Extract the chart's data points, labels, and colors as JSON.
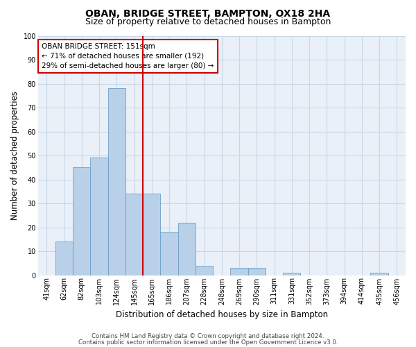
{
  "title": "OBAN, BRIDGE STREET, BAMPTON, OX18 2HA",
  "subtitle": "Size of property relative to detached houses in Bampton",
  "xlabel": "Distribution of detached houses by size in Bampton",
  "ylabel": "Number of detached properties",
  "categories": [
    "41sqm",
    "62sqm",
    "82sqm",
    "103sqm",
    "124sqm",
    "145sqm",
    "165sqm",
    "186sqm",
    "207sqm",
    "228sqm",
    "248sqm",
    "269sqm",
    "290sqm",
    "311sqm",
    "331sqm",
    "352sqm",
    "373sqm",
    "394sqm",
    "414sqm",
    "435sqm",
    "456sqm"
  ],
  "values": [
    0,
    14,
    45,
    49,
    78,
    34,
    34,
    18,
    22,
    4,
    0,
    3,
    3,
    0,
    1,
    0,
    0,
    0,
    0,
    1,
    0
  ],
  "bar_color": "#b8d0e8",
  "bar_edge_color": "#6ca0c8",
  "grid_color": "#c8d8e8",
  "background_color": "#eaf0f8",
  "vline_x": 5.5,
  "vline_color": "#cc0000",
  "annotation_text": "OBAN BRIDGE STREET: 151sqm\n← 71% of detached houses are smaller (192)\n29% of semi-detached houses are larger (80) →",
  "annotation_box_color": "#ffffff",
  "annotation_box_edge": "#cc0000",
  "ylim": [
    0,
    100
  ],
  "yticks": [
    0,
    10,
    20,
    30,
    40,
    50,
    60,
    70,
    80,
    90,
    100
  ],
  "footer_line1": "Contains HM Land Registry data © Crown copyright and database right 2024.",
  "footer_line2": "Contains public sector information licensed under the Open Government Licence v3.0.",
  "title_fontsize": 10,
  "subtitle_fontsize": 9,
  "tick_fontsize": 7,
  "ylabel_fontsize": 8.5,
  "xlabel_fontsize": 8.5,
  "annotation_fontsize": 7.5,
  "footer_fontsize": 6.2
}
